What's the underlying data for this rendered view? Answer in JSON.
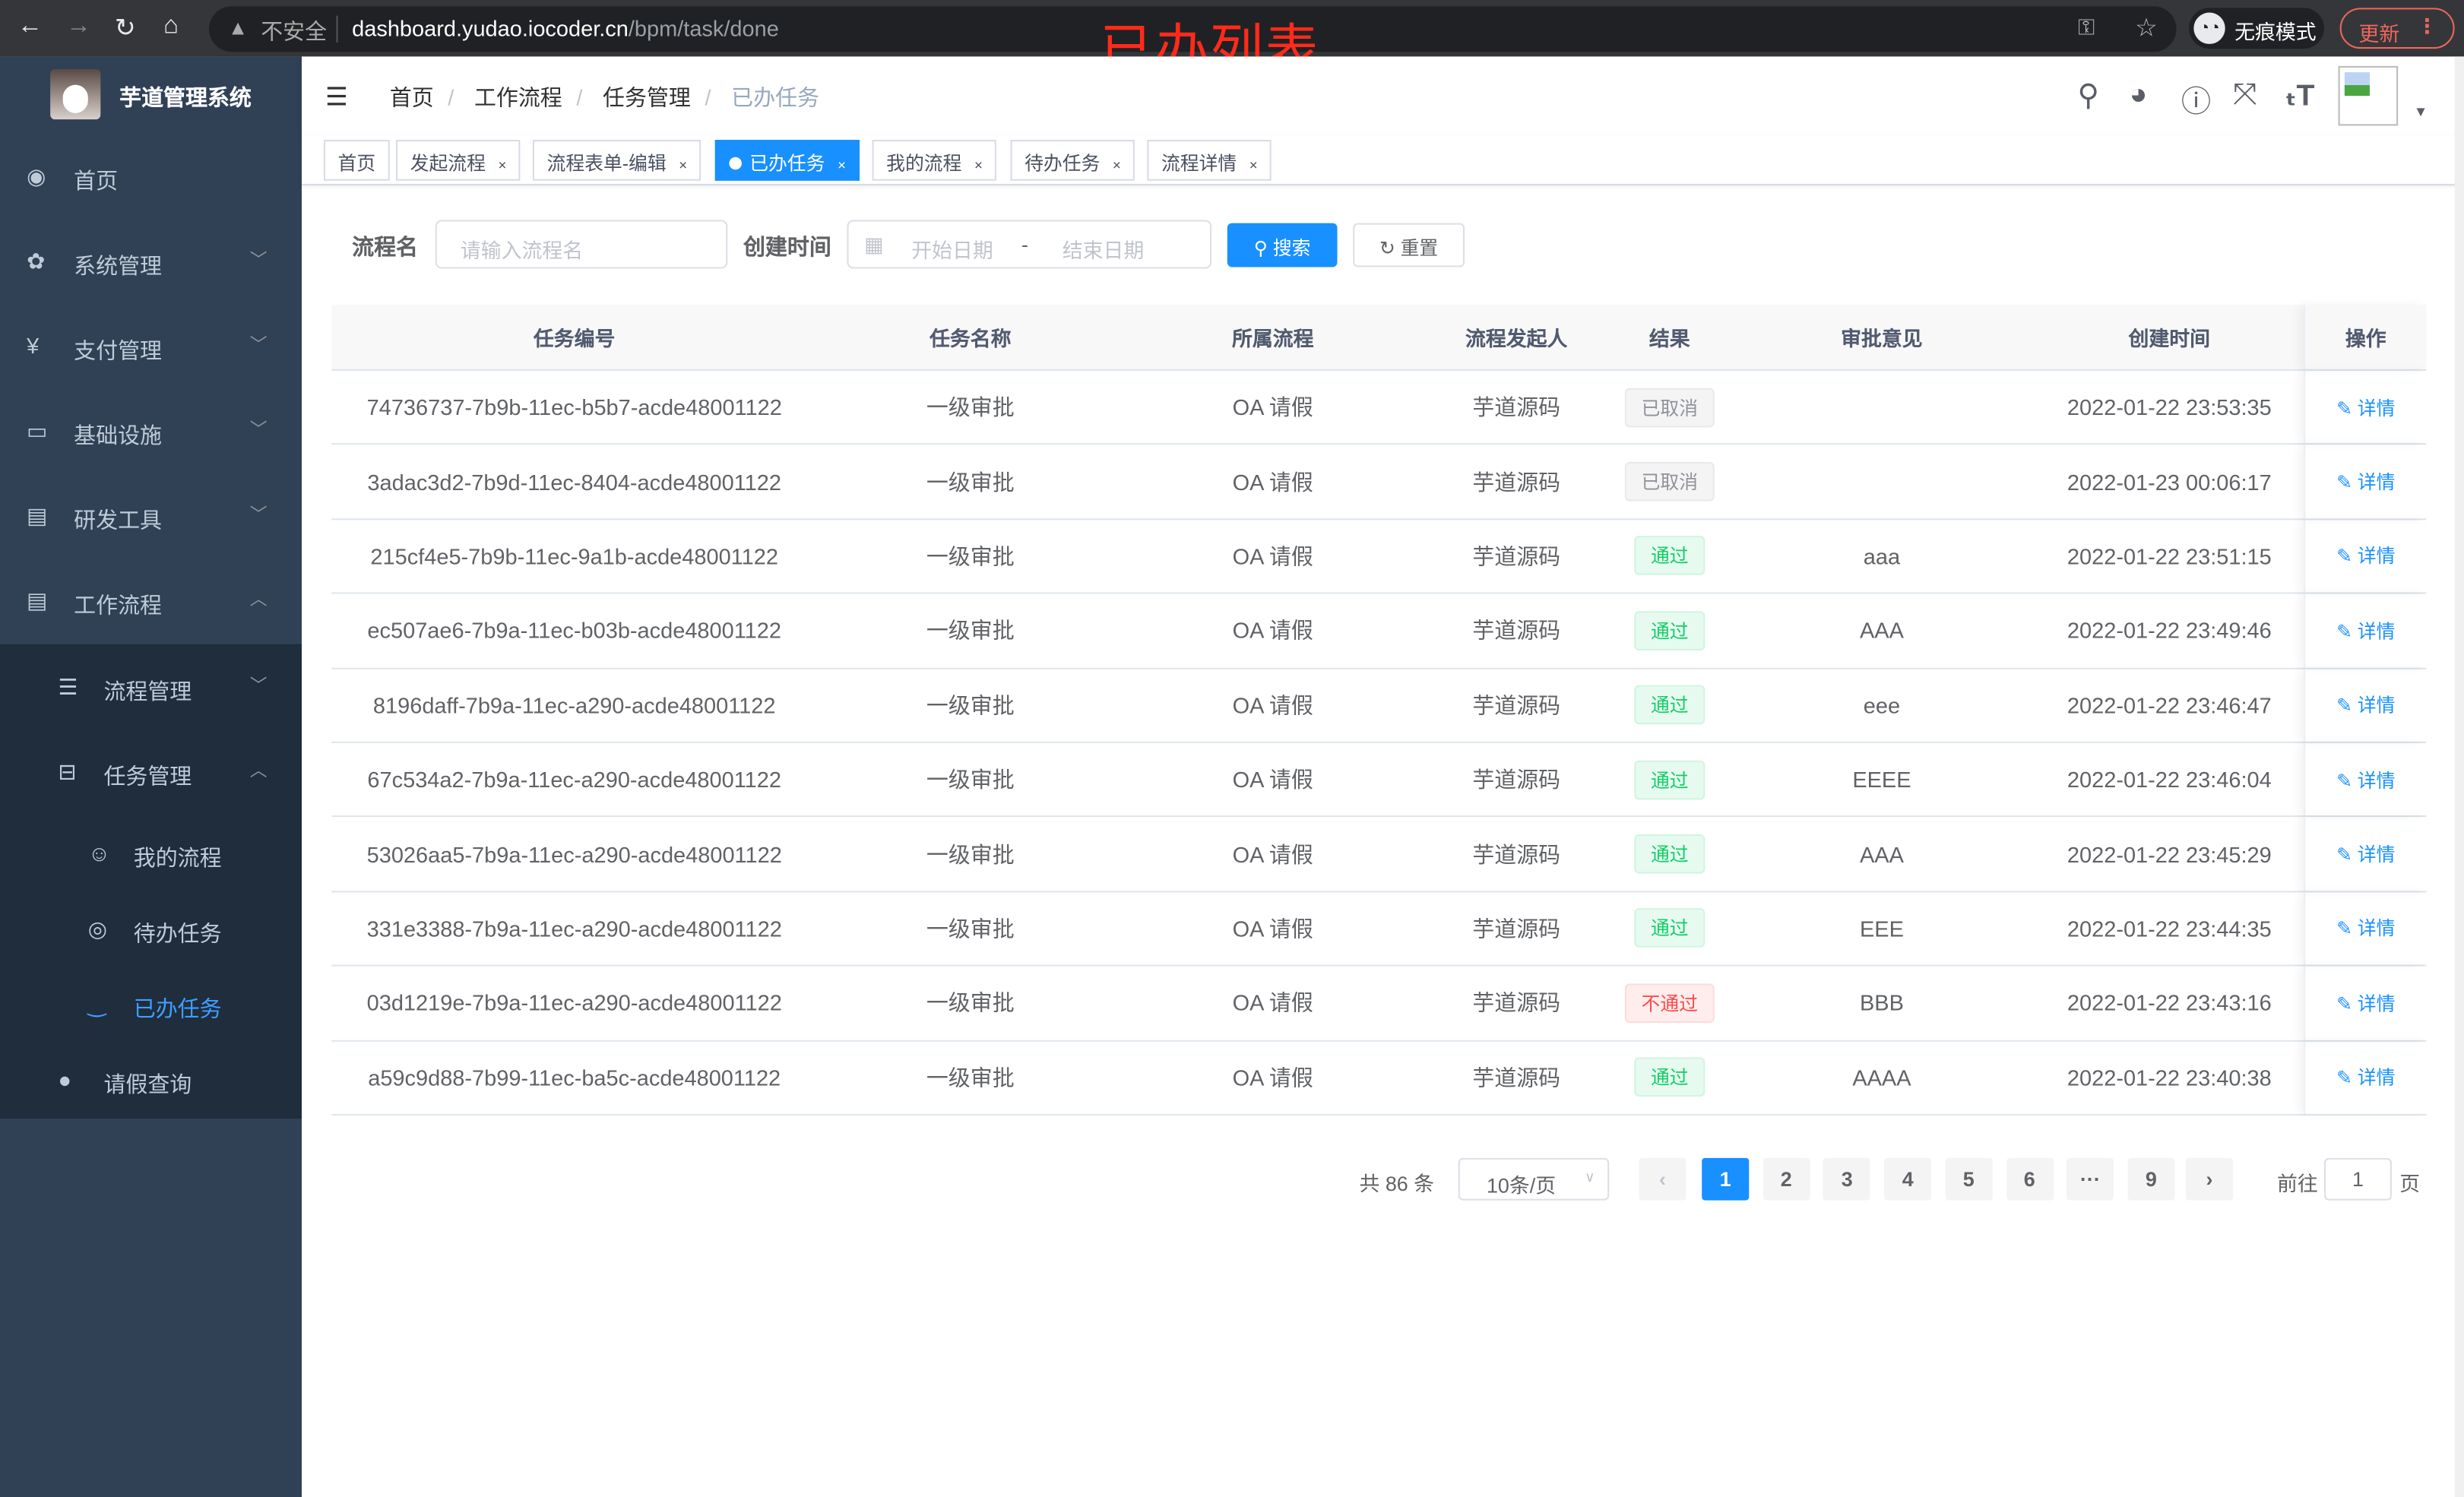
{
  "browser": {
    "insecure": "不安全",
    "url_host": "dashboard.yudao.iocoder.cn",
    "url_path": "/bpm/task/done",
    "incognito": "无痕模式",
    "update": "更新"
  },
  "annotation": "已办列表",
  "sidebar": {
    "title": "芋道管理系统",
    "items": [
      {
        "label": "首页",
        "icon": "dashboard-icon"
      },
      {
        "label": "系统管理",
        "icon": "gear-icon"
      },
      {
        "label": "支付管理",
        "icon": "yen-icon"
      },
      {
        "label": "基础设施",
        "icon": "monitor-icon"
      },
      {
        "label": "研发工具",
        "icon": "toolbox-icon"
      },
      {
        "label": "工作流程",
        "icon": "toolbox-icon"
      },
      {
        "label": "流程管理",
        "icon": "list-icon"
      },
      {
        "label": "任务管理",
        "icon": "tree-icon"
      },
      {
        "label": "我的流程",
        "icon": "people-icon"
      },
      {
        "label": "待办任务",
        "icon": "eye-icon"
      },
      {
        "label": "已办任务",
        "icon": "eye-closed-icon"
      },
      {
        "label": "请假查询",
        "icon": "user-icon"
      }
    ]
  },
  "breadcrumb": [
    "首页",
    "工作流程",
    "任务管理",
    "已办任务"
  ],
  "tags": [
    "首页",
    "发起流程",
    "流程表单-编辑",
    "已办任务",
    "我的流程",
    "待办任务",
    "流程详情"
  ],
  "search": {
    "name_label": "流程名",
    "name_placeholder": "请输入流程名",
    "time_label": "创建时间",
    "start_placeholder": "开始日期",
    "sep": "-",
    "end_placeholder": "结束日期",
    "search_btn": "搜索",
    "reset_btn": "重置"
  },
  "table": {
    "headers": [
      "任务编号",
      "任务名称",
      "所属流程",
      "流程发起人",
      "结果",
      "审批意见",
      "创建时间",
      "操作"
    ],
    "rows": [
      {
        "id": "74736737-7b9b-11ec-b5b7-acde48001122",
        "name": "一级审批",
        "process": "OA 请假",
        "starter": "芋道源码",
        "result": "已取消",
        "result_type": "cancel",
        "comment": "",
        "time": "2022-01-22 23:53:35",
        "op": "详情"
      },
      {
        "id": "3adac3d2-7b9d-11ec-8404-acde48001122",
        "name": "一级审批",
        "process": "OA 请假",
        "starter": "芋道源码",
        "result": "已取消",
        "result_type": "cancel",
        "comment": "",
        "time": "2022-01-23 00:06:17",
        "op": "详情"
      },
      {
        "id": "215cf4e5-7b9b-11ec-9a1b-acde48001122",
        "name": "一级审批",
        "process": "OA 请假",
        "starter": "芋道源码",
        "result": "通过",
        "result_type": "pass",
        "comment": "aaa",
        "time": "2022-01-22 23:51:15",
        "op": "详情"
      },
      {
        "id": "ec507ae6-7b9a-11ec-b03b-acde48001122",
        "name": "一级审批",
        "process": "OA 请假",
        "starter": "芋道源码",
        "result": "通过",
        "result_type": "pass",
        "comment": "AAA",
        "time": "2022-01-22 23:49:46",
        "op": "详情"
      },
      {
        "id": "8196daff-7b9a-11ec-a290-acde48001122",
        "name": "一级审批",
        "process": "OA 请假",
        "starter": "芋道源码",
        "result": "通过",
        "result_type": "pass",
        "comment": "eee",
        "time": "2022-01-22 23:46:47",
        "op": "详情"
      },
      {
        "id": "67c534a2-7b9a-11ec-a290-acde48001122",
        "name": "一级审批",
        "process": "OA 请假",
        "starter": "芋道源码",
        "result": "通过",
        "result_type": "pass",
        "comment": "EEEE",
        "time": "2022-01-22 23:46:04",
        "op": "详情"
      },
      {
        "id": "53026aa5-7b9a-11ec-a290-acde48001122",
        "name": "一级审批",
        "process": "OA 请假",
        "starter": "芋道源码",
        "result": "通过",
        "result_type": "pass",
        "comment": "AAA",
        "time": "2022-01-22 23:45:29",
        "op": "详情"
      },
      {
        "id": "331e3388-7b9a-11ec-a290-acde48001122",
        "name": "一级审批",
        "process": "OA 请假",
        "starter": "芋道源码",
        "result": "通过",
        "result_type": "pass",
        "comment": "EEE",
        "time": "2022-01-22 23:44:35",
        "op": "详情"
      },
      {
        "id": "03d1219e-7b9a-11ec-a290-acde48001122",
        "name": "一级审批",
        "process": "OA 请假",
        "starter": "芋道源码",
        "result": "不通过",
        "result_type": "fail",
        "comment": "BBB",
        "time": "2022-01-22 23:43:16",
        "op": "详情"
      },
      {
        "id": "a59c9d88-7b99-11ec-ba5c-acde48001122",
        "name": "一级审批",
        "process": "OA 请假",
        "starter": "芋道源码",
        "result": "通过",
        "result_type": "pass",
        "comment": "AAAA",
        "time": "2022-01-22 23:40:38",
        "op": "详情"
      }
    ]
  },
  "pagination": {
    "total": "共 86 条",
    "page_size": "10条/页",
    "pages": [
      "1",
      "2",
      "3",
      "4",
      "5",
      "6",
      "···",
      "9"
    ],
    "current": "1",
    "goto_label": "前往",
    "goto_value": "1",
    "page_suffix": "页"
  },
  "colors": {
    "sidebar": "#304156",
    "submenu": "#1f2d3d",
    "primary": "#1890ff",
    "annotation": "#ff2a1a"
  }
}
